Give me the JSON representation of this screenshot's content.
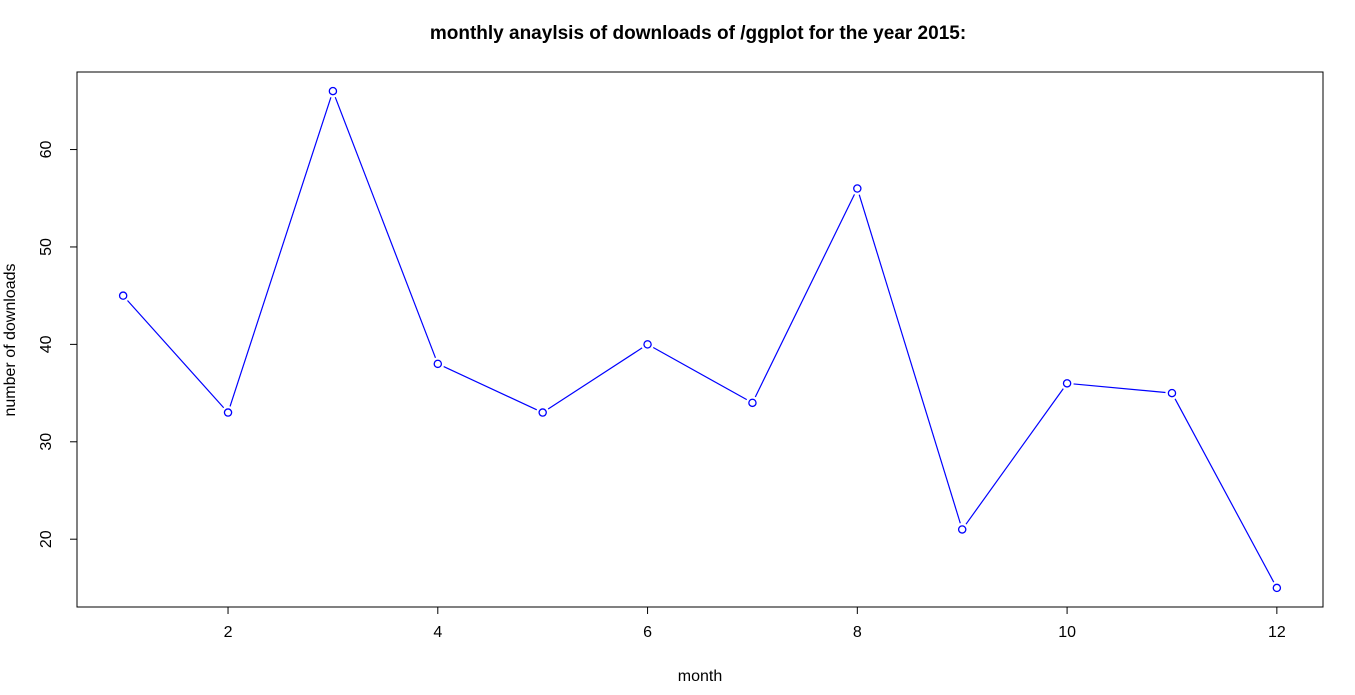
{
  "chart_data": {
    "type": "line",
    "title": "monthly anaylsis of downloads of /ggplot for the year 2015:",
    "xlabel": "month",
    "ylabel": "number of downloads",
    "x": [
      1,
      2,
      3,
      4,
      5,
      6,
      7,
      8,
      9,
      10,
      11,
      12
    ],
    "series": [
      {
        "name": "downloads",
        "values": [
          45,
          33,
          66,
          38,
          33,
          40,
          34,
          56,
          21,
          36,
          35,
          15
        ],
        "color": "#0000ff",
        "marker": "open-circle"
      }
    ],
    "xlim": [
      0.56,
      12.44
    ],
    "ylim": [
      13.04,
      67.96
    ],
    "xticks": [
      2,
      4,
      6,
      8,
      10,
      12
    ],
    "yticks": [
      20,
      30,
      40,
      50,
      60
    ],
    "grid": false,
    "legend": "none"
  }
}
